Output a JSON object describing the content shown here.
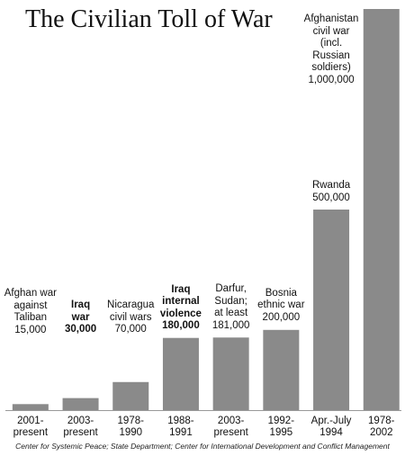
{
  "chart_data": {
    "type": "bar",
    "title": "The Civilian Toll of War",
    "categories": [
      "2001-\npresent",
      "2003-\npresent",
      "1978-\n1990",
      "1988-\n1991",
      "2003-\npresent",
      "1992-\n1995",
      "Apr.-July\n1994",
      "1978-\n2002"
    ],
    "bar_labels": [
      "Afghan war\nagainst\nTaliban",
      "Iraq\nwar",
      "Nicaragua\ncivil wars",
      "Iraq\ninternal\nviolence",
      "Darfur,\nSudan;\nat least",
      "Bosnia\nethnic war",
      "Rwanda",
      "Afghanistan\ncivil war\n(incl.\nRussian\nsoldiers)"
    ],
    "values": [
      15000,
      30000,
      70000,
      180000,
      181000,
      200000,
      500000,
      1000000
    ],
    "value_labels": [
      "15,000",
      "30,000",
      "70,000",
      "180,000",
      "181,000",
      "200,000",
      "500,000",
      "1,000,000"
    ],
    "bold": [
      false,
      true,
      false,
      true,
      false,
      false,
      false,
      false
    ],
    "color": "#8a8a8a",
    "ylim": [
      0,
      1000000
    ],
    "source": "Center for Systemic Peace; State Department; Center for International Development and Conflict Management"
  }
}
